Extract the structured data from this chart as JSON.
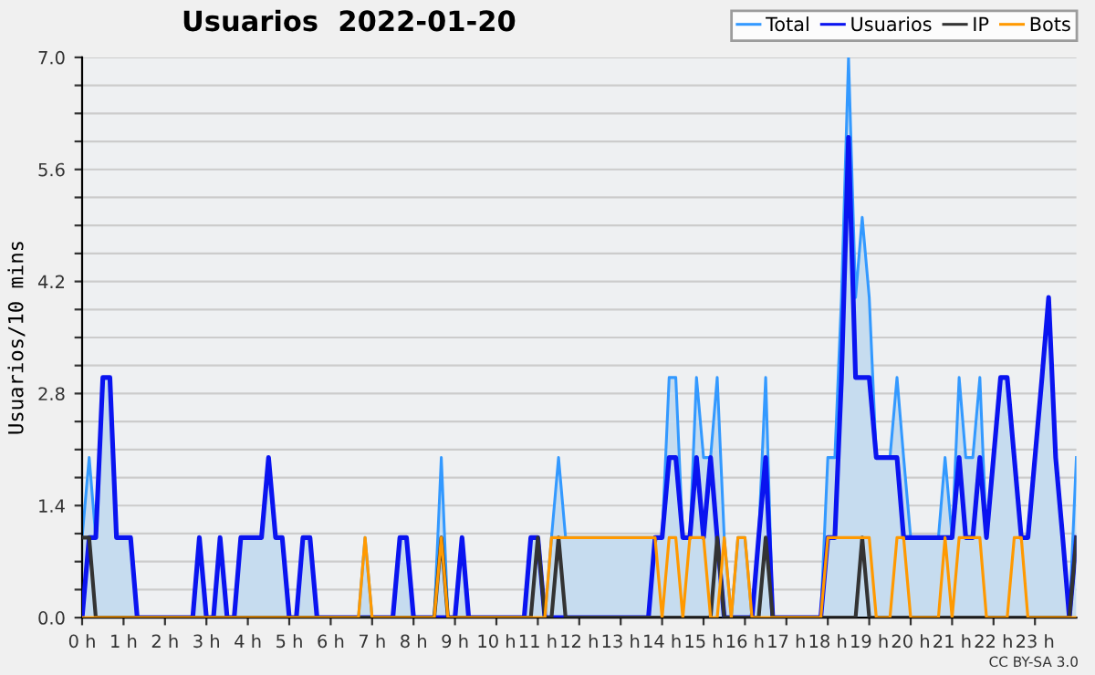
{
  "chart_data": {
    "type": "line",
    "title": "Usuarios  2022-01-20",
    "ylabel": "Usuarios/10 mins",
    "xlim": [
      0,
      24
    ],
    "ylim": [
      0,
      7
    ],
    "xticks": [
      {
        "value": 0,
        "label": "0 h"
      },
      {
        "value": 1,
        "label": "1 h"
      },
      {
        "value": 2,
        "label": "2 h"
      },
      {
        "value": 3,
        "label": "3 h"
      },
      {
        "value": 4,
        "label": "4 h"
      },
      {
        "value": 5,
        "label": "5 h"
      },
      {
        "value": 6,
        "label": "6 h"
      },
      {
        "value": 7,
        "label": "7 h"
      },
      {
        "value": 8,
        "label": "8 h"
      },
      {
        "value": 9,
        "label": "9 h"
      },
      {
        "value": 10,
        "label": "10 h"
      },
      {
        "value": 11,
        "label": "11 h"
      },
      {
        "value": 12,
        "label": "12 h"
      },
      {
        "value": 13,
        "label": "13 h"
      },
      {
        "value": 14,
        "label": "14 h"
      },
      {
        "value": 15,
        "label": "15 h"
      },
      {
        "value": 16,
        "label": "16 h"
      },
      {
        "value": 17,
        "label": "17 h"
      },
      {
        "value": 18,
        "label": "18 h"
      },
      {
        "value": 19,
        "label": "19 h"
      },
      {
        "value": 20,
        "label": "20 h"
      },
      {
        "value": 21,
        "label": "21 h"
      },
      {
        "value": 22,
        "label": "22 h"
      },
      {
        "value": 23,
        "label": "23 h"
      }
    ],
    "yticks": [
      {
        "value": 0,
        "label": "0.0"
      },
      {
        "value": 0.35,
        "label": null
      },
      {
        "value": 0.7,
        "label": null
      },
      {
        "value": 1.05,
        "label": null
      },
      1.4,
      {
        "value": 1.75,
        "label": null
      },
      {
        "value": 2.1,
        "label": null
      },
      {
        "value": 2.45,
        "label": null
      },
      2.8,
      {
        "value": 3.15,
        "label": null
      },
      {
        "value": 3.5,
        "label": null
      },
      {
        "value": 3.85,
        "label": null
      },
      4.2,
      {
        "value": 4.55,
        "label": null
      },
      {
        "value": 4.9,
        "label": null
      },
      {
        "value": 5.25,
        "label": null
      },
      5.6,
      {
        "value": 5.95,
        "label": null
      },
      {
        "value": 6.3,
        "label": null
      },
      {
        "value": 6.65,
        "label": null
      },
      {
        "value": 7,
        "label": "7.0"
      }
    ],
    "grid": "y",
    "legend": "top right",
    "annotations": [
      "CC BY-SA 3.0"
    ],
    "series": [
      {
        "name": "Total",
        "type": "area",
        "color": "#3399ff",
        "x": [
          0,
          0.17,
          0.33,
          0.5,
          0.67,
          0.83,
          1.17,
          1.33,
          2.67,
          2.83,
          3,
          3.17,
          3.33,
          3.5,
          3.67,
          3.83,
          4.33,
          4.5,
          4.67,
          4.83,
          5,
          5.17,
          5.33,
          5.5,
          5.67,
          6.67,
          6.83,
          7,
          7.5,
          7.67,
          7.83,
          8,
          8.5,
          8.67,
          8.83,
          9,
          9.17,
          9.33,
          10.67,
          10.83,
          11,
          11.17,
          11.33,
          11.5,
          11.67,
          13.83,
          14,
          14.17,
          14.33,
          14.5,
          14.67,
          14.83,
          15,
          15.17,
          15.33,
          15.5,
          15.67,
          15.83,
          16,
          16.17,
          16.33,
          16.5,
          16.67,
          17.83,
          18,
          18.17,
          18.33,
          18.5,
          18.67,
          18.83,
          19,
          19.17,
          19.33,
          19.5,
          19.67,
          19.83,
          20,
          20.67,
          20.83,
          21,
          21.17,
          21.33,
          21.5,
          21.67,
          21.83,
          22,
          22.17,
          22.33,
          22.5,
          22.67,
          22.83,
          23,
          23.17,
          23.33,
          23.5,
          23.67,
          23.83,
          24
        ],
        "values": [
          1,
          2,
          1,
          3,
          3,
          1,
          1,
          0,
          0,
          1,
          0,
          0,
          1,
          0,
          0,
          1,
          1,
          2,
          1,
          1,
          0,
          0,
          1,
          1,
          0,
          0,
          1,
          0,
          0,
          1,
          1,
          0,
          0,
          2,
          0,
          0,
          1,
          0,
          0,
          1,
          1,
          0,
          1,
          2,
          1,
          1,
          1,
          3,
          3,
          1,
          1,
          3,
          2,
          2,
          3,
          1,
          0,
          1,
          1,
          0,
          1,
          3,
          0,
          0,
          2,
          2,
          4,
          7,
          4,
          5,
          4,
          2,
          2,
          2,
          3,
          2,
          1,
          1,
          2,
          1,
          3,
          2,
          2,
          3,
          1,
          2,
          3,
          3,
          2,
          1,
          1,
          2,
          3,
          4,
          2,
          1,
          0,
          2
        ]
      },
      {
        "name": "Usuarios",
        "color": "#0a14f0",
        "x": [
          0,
          0.17,
          0.33,
          0.5,
          0.67,
          0.83,
          1.17,
          1.33,
          2.67,
          2.83,
          3,
          3.17,
          3.33,
          3.5,
          3.67,
          3.83,
          4.33,
          4.5,
          4.67,
          4.83,
          5,
          5.17,
          5.33,
          5.5,
          5.67,
          7.5,
          7.67,
          7.83,
          8,
          9,
          9.17,
          9.33,
          10.67,
          10.83,
          11,
          11.17,
          13.67,
          13.83,
          14,
          14.17,
          14.33,
          14.5,
          14.67,
          14.83,
          15,
          15.17,
          15.33,
          15.5,
          16.17,
          16.33,
          16.5,
          16.67,
          17.83,
          18,
          18.17,
          18.33,
          18.5,
          18.67,
          18.83,
          19,
          19.17,
          19.33,
          19.5,
          19.67,
          19.83,
          21,
          21.17,
          21.33,
          21.5,
          21.67,
          21.83,
          22,
          22.17,
          22.33,
          22.5,
          22.67,
          22.83,
          23,
          23.17,
          23.33,
          23.5,
          23.67,
          23.83,
          24
        ],
        "values": [
          0,
          1,
          1,
          3,
          3,
          1,
          1,
          0,
          0,
          1,
          0,
          0,
          1,
          0,
          0,
          1,
          1,
          2,
          1,
          1,
          0,
          0,
          1,
          1,
          0,
          0,
          1,
          1,
          0,
          0,
          1,
          0,
          0,
          1,
          1,
          0,
          0,
          1,
          1,
          2,
          2,
          1,
          1,
          2,
          1,
          2,
          1,
          0,
          0,
          1,
          2,
          0,
          0,
          1,
          1,
          3,
          6,
          3,
          3,
          3,
          2,
          2,
          2,
          2,
          1,
          1,
          2,
          1,
          1,
          2,
          1,
          2,
          3,
          3,
          2,
          1,
          1,
          2,
          3,
          4,
          2,
          1,
          0,
          1
        ]
      },
      {
        "name": "IP",
        "color": "#333333",
        "x": [
          0,
          0.17,
          0.33,
          8.5,
          8.67,
          8.83,
          10.83,
          11,
          11.17,
          11.33,
          11.5,
          11.67,
          15.17,
          15.33,
          15.5,
          16.33,
          16.5,
          16.67,
          18.67,
          18.83,
          19,
          23.83,
          24
        ],
        "values": [
          1,
          1,
          0,
          0,
          1,
          0,
          0,
          1,
          0,
          0,
          1,
          0,
          0,
          1,
          0,
          0,
          1,
          0,
          0,
          1,
          0,
          0,
          1
        ]
      },
      {
        "name": "Bots",
        "color": "#ff9900",
        "x": [
          0,
          6.67,
          6.83,
          7,
          8.5,
          8.67,
          8.83,
          11.17,
          11.33,
          13.83,
          14,
          14.17,
          14.33,
          14.5,
          14.67,
          15,
          15.17,
          15.33,
          15.5,
          15.67,
          15.83,
          16,
          16.17,
          17.83,
          18,
          19,
          19.17,
          19.5,
          19.67,
          19.83,
          20,
          20.67,
          20.83,
          21,
          21.17,
          21.67,
          21.83,
          22.33,
          22.5,
          22.67,
          22.83,
          24
        ],
        "values": [
          0,
          0,
          1,
          0,
          0,
          1,
          0,
          0,
          1,
          1,
          0,
          1,
          1,
          0,
          1,
          1,
          0,
          0,
          1,
          0,
          1,
          1,
          0,
          0,
          1,
          1,
          0,
          0,
          1,
          1,
          0,
          0,
          1,
          0,
          1,
          1,
          0,
          0,
          1,
          1,
          0,
          0
        ]
      }
    ]
  }
}
